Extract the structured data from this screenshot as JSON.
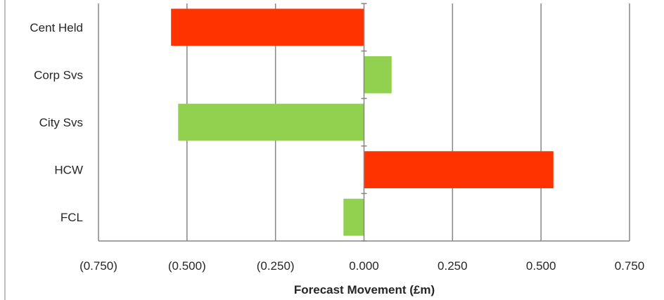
{
  "chart_data": {
    "type": "bar",
    "orientation": "horizontal",
    "categories": [
      "Cent Held",
      "Corp Svs",
      "City Svs",
      "HCW",
      "FCL"
    ],
    "values": [
      -0.545,
      0.078,
      -0.525,
      0.535,
      -0.058
    ],
    "bar_colors": [
      "#ff3300",
      "#92d050",
      "#92d050",
      "#ff3300",
      "#92d050"
    ],
    "xlabel": "Forecast Movement (£m)",
    "ylabel": "",
    "title": "",
    "xlim": [
      -0.75,
      0.75
    ],
    "xticks": [
      -0.75,
      -0.5,
      -0.25,
      0,
      0.25,
      0.5,
      0.75
    ],
    "xtick_labels": [
      "(0.750)",
      "(0.500)",
      "(0.250)",
      "0.000",
      "0.250",
      "0.500",
      "0.750"
    ],
    "grid": "vertical",
    "legend": "none"
  }
}
